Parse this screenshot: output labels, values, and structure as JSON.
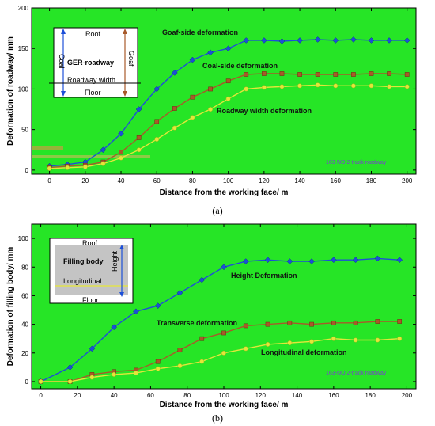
{
  "chart_data": [
    {
      "type": "line",
      "panel": "(a)",
      "xlabel": "Distance from the working face/ m",
      "ylabel": "Deformation of roadway/ mm",
      "xlim": [
        -10,
        205
      ],
      "ylim": [
        -5,
        200
      ],
      "xticks": [
        0,
        20,
        40,
        60,
        80,
        100,
        120,
        140,
        160,
        180,
        200
      ],
      "yticks": [
        0,
        50,
        100,
        150,
        200
      ],
      "tag": "163-NO.2-track roadway",
      "grid": false,
      "series": [
        {
          "name": "Goaf-side deformation",
          "color": "#1d4fd8",
          "marker": "diamond",
          "x": [
            0,
            10,
            20,
            30,
            40,
            50,
            60,
            70,
            80,
            90,
            100,
            110,
            120,
            130,
            140,
            150,
            160,
            170,
            180,
            190,
            200
          ],
          "y": [
            5,
            7,
            10,
            25,
            45,
            75,
            100,
            120,
            136,
            145,
            150,
            160,
            160,
            159,
            160,
            161,
            160,
            161,
            160,
            160,
            160
          ]
        },
        {
          "name": "Coal-side deformation",
          "color": "#a85a2a",
          "marker": "square",
          "x": [
            0,
            10,
            20,
            30,
            40,
            50,
            60,
            70,
            80,
            90,
            100,
            110,
            120,
            130,
            140,
            150,
            160,
            170,
            180,
            190,
            200
          ],
          "y": [
            3,
            5,
            6,
            10,
            22,
            40,
            60,
            76,
            90,
            100,
            110,
            118,
            119,
            119,
            118,
            118,
            118,
            118,
            119,
            119,
            118
          ]
        },
        {
          "name": "Roadway width deformation",
          "color": "#e3e63a",
          "marker": "circle",
          "x": [
            0,
            10,
            20,
            30,
            40,
            50,
            60,
            70,
            80,
            90,
            100,
            110,
            120,
            130,
            140,
            150,
            160,
            170,
            180,
            190,
            200
          ],
          "y": [
            2,
            3,
            4,
            8,
            15,
            25,
            38,
            52,
            65,
            75,
            88,
            100,
            102,
            103,
            104,
            105,
            104,
            104,
            104,
            103,
            103
          ]
        }
      ],
      "inset": {
        "title": "GER-roadway",
        "top": "Roof",
        "bottom": "Floor",
        "left": "Coal",
        "right": "Goaf",
        "middle": "Roadway width"
      }
    },
    {
      "type": "line",
      "panel": "(b)",
      "xlabel": "Distance from the working face/ m",
      "ylabel": "Deformation of filling body/ mm",
      "xlim": [
        -5,
        205
      ],
      "ylim": [
        -5,
        110
      ],
      "xticks": [
        0,
        20,
        40,
        60,
        80,
        100,
        120,
        140,
        160,
        180,
        200
      ],
      "yticks": [
        0,
        20,
        40,
        60,
        80,
        100
      ],
      "tag": "163-NO.2-track roadway",
      "grid": false,
      "series": [
        {
          "name": "Height Deformation",
          "color": "#1d4fd8",
          "marker": "diamond",
          "x": [
            0,
            16,
            28,
            40,
            52,
            64,
            76,
            88,
            100,
            112,
            124,
            136,
            148,
            160,
            172,
            184,
            196
          ],
          "y": [
            0,
            10,
            23,
            38,
            49,
            53,
            62,
            71,
            80,
            84,
            85,
            84,
            84,
            85,
            85,
            86,
            85
          ]
        },
        {
          "name": "Transverse deformation",
          "color": "#a85a2a",
          "marker": "square",
          "x": [
            0,
            16,
            28,
            40,
            52,
            64,
            76,
            88,
            100,
            112,
            124,
            136,
            148,
            160,
            172,
            184,
            196
          ],
          "y": [
            0,
            0,
            5,
            7,
            8,
            14,
            22,
            30,
            34,
            39,
            40,
            41,
            40,
            41,
            41,
            42,
            42
          ]
        },
        {
          "name": "Longitudinal deformation",
          "color": "#e3e63a",
          "marker": "circle",
          "x": [
            0,
            16,
            28,
            40,
            52,
            64,
            76,
            88,
            100,
            112,
            124,
            136,
            148,
            160,
            172,
            184,
            196
          ],
          "y": [
            0,
            0,
            3,
            5,
            6,
            9,
            11,
            14,
            20,
            23,
            26,
            27,
            28,
            30,
            29,
            29,
            30
          ]
        }
      ],
      "inset": {
        "title": "Filling body",
        "top": "Roof",
        "bottom": "Floor",
        "right": "Height",
        "middle": "Longitudinal"
      }
    }
  ]
}
